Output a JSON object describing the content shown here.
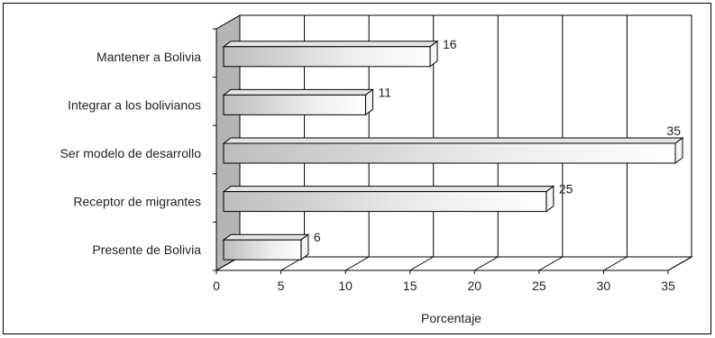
{
  "chart_data": {
    "type": "bar",
    "orientation": "horizontal",
    "categories": [
      "Mantener a Bolivia",
      "Integrar a los bolivianos",
      "Ser modelo de desarrollo",
      "Receptor de migrantes",
      "Presente de Bolivia"
    ],
    "values": [
      16,
      11,
      35,
      25,
      6
    ],
    "xlabel": "Porcentaje",
    "xlim": [
      0,
      35
    ],
    "xticks": [
      0,
      5,
      10,
      15,
      20,
      25,
      30,
      35
    ],
    "grid": true,
    "style": "3d",
    "colors": {
      "bar_light": "#ffffff",
      "bar_dark": "#a8a8a8",
      "wall": "#b5b5b5",
      "grid": "#000000"
    }
  }
}
